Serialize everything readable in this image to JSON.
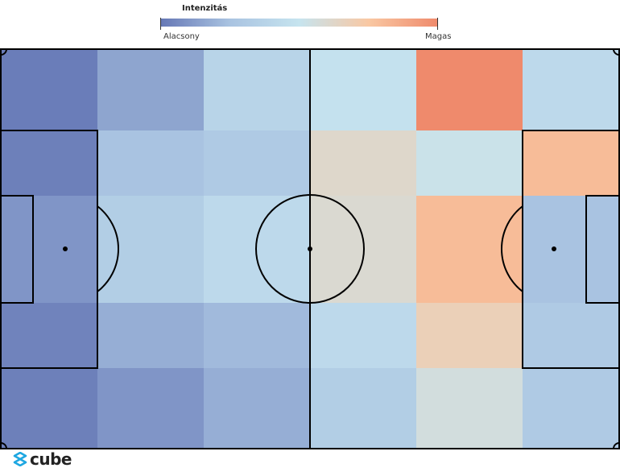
{
  "chart_data": {
    "type": "heatmap",
    "legend": {
      "title": "Intenzitás",
      "low_label": "Alacsony",
      "high_label": "Magas",
      "placement": "top-center"
    },
    "color_scale": [
      "#6577b5",
      "#a9c3e1",
      "#c6e4ef",
      "#f9c8a3",
      "#ef8a6c"
    ],
    "grid": {
      "columns": 6,
      "rows": 5
    },
    "values": [
      [
        0.02,
        0.15,
        0.38,
        0.48,
        1.0,
        0.42
      ],
      [
        0.03,
        0.25,
        0.3,
        0.62,
        0.52,
        0.8
      ],
      [
        0.1,
        0.33,
        0.42,
        0.6,
        0.8,
        0.25
      ],
      [
        0.04,
        0.18,
        0.22,
        0.42,
        0.68,
        0.3
      ],
      [
        0.03,
        0.1,
        0.18,
        0.33,
        0.56,
        0.3
      ]
    ],
    "background": "football-pitch"
  },
  "brand": {
    "logo_text": "cube",
    "logo_color": "#1ea7e1"
  }
}
